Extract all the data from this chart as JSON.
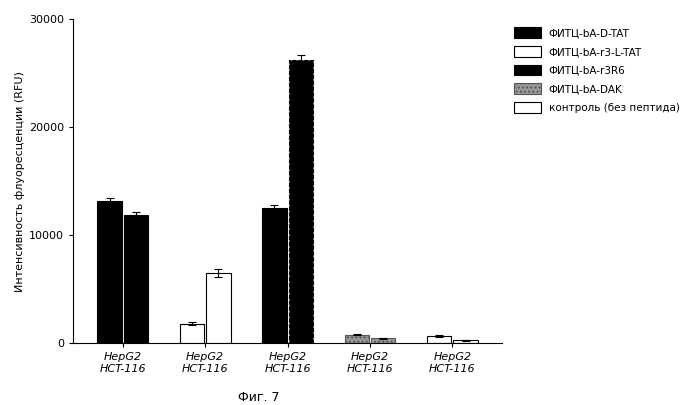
{
  "groups": [
    {
      "values": [
        13200,
        11900
      ],
      "errors": [
        280,
        200
      ],
      "color": "#000000",
      "edgecolor": "#000000",
      "hatch": null
    },
    {
      "values": [
        1800,
        6500
      ],
      "errors": [
        150,
        380
      ],
      "color": "#ffffff",
      "edgecolor": "#000000",
      "hatch": null
    },
    {
      "values": [
        12500,
        26200
      ],
      "errors": [
        300,
        500
      ],
      "color": "#000000",
      "edgecolor": "#000000",
      "hatch": null
    },
    {
      "values": [
        800,
        450
      ],
      "errors": [
        60,
        35
      ],
      "color": "#999999",
      "edgecolor": "#555555",
      "hatch": "...."
    },
    {
      "values": [
        650,
        250
      ],
      "errors": [
        90,
        40
      ],
      "color": "#ffffff",
      "edgecolor": "#000000",
      "hatch": null
    }
  ],
  "series_names": [
    "ФИТЦ-bA-D-TAT",
    "ФИТЦ-bA-r3-L-TAT",
    "ФИТЦ-bA-r3R6",
    "ФИТЦ-bA-DAK",
    "контроль (без пептида)"
  ],
  "legend_colors": [
    "#000000",
    "#ffffff",
    "#000000",
    "#999999",
    "#ffffff"
  ],
  "legend_edgecolors": [
    "#000000",
    "#000000",
    "#000000",
    "#555555",
    "#000000"
  ],
  "legend_hatches": [
    null,
    null,
    null,
    "....",
    null
  ],
  "ylabel": "Интенсивность флуоресценции (RFU)",
  "ylim": [
    0,
    30000
  ],
  "yticks": [
    0,
    10000,
    20000,
    30000
  ],
  "caption": "Фиг. 7",
  "bar_width": 0.32,
  "figsize": [
    6.99,
    4.05
  ],
  "dpi": 100
}
